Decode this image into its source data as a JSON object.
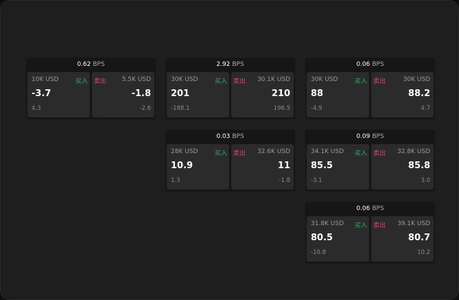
{
  "quotes": [
    {
      "bps": "0.62",
      "unit": "BPS",
      "buy": {
        "size": "10K USD",
        "label": "买入",
        "price": "-3.7",
        "change": "4.3"
      },
      "sell": {
        "size": "5.5K USD",
        "label": "卖出",
        "price": "-1.8",
        "change": "-2.6"
      }
    },
    {
      "bps": "2.92",
      "unit": "BPS",
      "buy": {
        "size": "30K USD",
        "label": "买入",
        "price": "201",
        "change": "-188.1"
      },
      "sell": {
        "size": "30.1K USD",
        "label": "卖出",
        "price": "210",
        "change": "196.5"
      }
    },
    {
      "bps": "0.06",
      "unit": "BPS",
      "buy": {
        "size": "30K USD",
        "label": "买入",
        "price": "88",
        "change": "-4.9"
      },
      "sell": {
        "size": "30K USD",
        "label": "卖出",
        "price": "88.2",
        "change": "4.7"
      }
    },
    {
      "bps": "0.03",
      "unit": "BPS",
      "buy": {
        "size": "28K USD",
        "label": "买入",
        "price": "10.9",
        "change": "1.3"
      },
      "sell": {
        "size": "32.6K USD",
        "label": "卖出",
        "price": "11",
        "change": "-1.8"
      }
    },
    {
      "bps": "0.09",
      "unit": "BPS",
      "buy": {
        "size": "34.1K USD",
        "label": "买入",
        "price": "85.5",
        "change": "-3.1"
      },
      "sell": {
        "size": "32.8K USD",
        "label": "卖出",
        "price": "85.8",
        "change": "3.0"
      }
    },
    {
      "bps": "0.06",
      "unit": "BPS",
      "buy": {
        "size": "31.8K USD",
        "label": "买入",
        "price": "80.5",
        "change": "-10.8"
      },
      "sell": {
        "size": "39.1K USD",
        "label": "卖出",
        "price": "80.7",
        "change": "10.2"
      }
    }
  ],
  "colors": {
    "buy": "#2fb36a",
    "sell": "#e0436a"
  }
}
